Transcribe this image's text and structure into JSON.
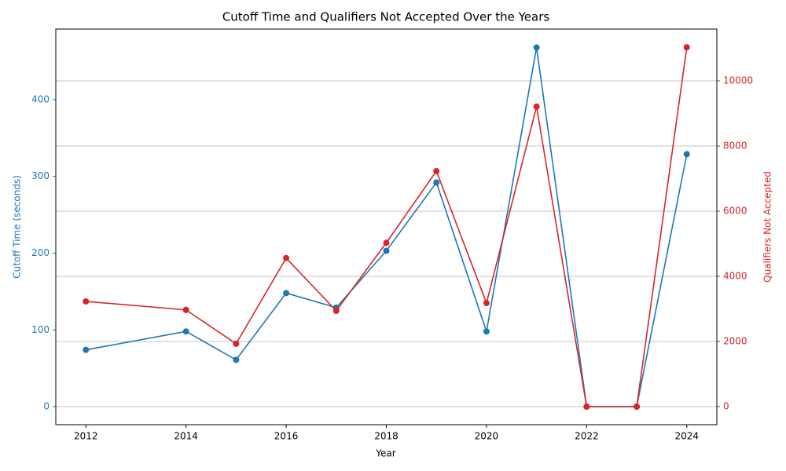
{
  "chart_data": {
    "type": "line",
    "title": "Cutoff Time and Qualifiers Not Accepted Over the Years",
    "x_label": "Year",
    "y_label": "Cutoff Time (seconds)",
    "y2_label": "Qualifiers Not Accepted",
    "x": [
      2012,
      2014,
      2015,
      2016,
      2017,
      2018,
      2019,
      2020,
      2021,
      2022,
      2023,
      2024
    ],
    "series": [
      {
        "name": "Cutoff Time (seconds)",
        "color": "#1f77b4",
        "values": [
          74,
          98,
          61,
          148,
          129,
          203,
          292,
          98,
          468,
          0,
          0,
          329
        ]
      },
      {
        "name": "Qualifiers Not Accepted",
        "color": "#d62728",
        "axis": "y2",
        "values": [
          3230,
          2970,
          1930,
          4560,
          2940,
          5030,
          7230,
          3180,
          9210,
          0,
          0,
          11030
        ]
      }
    ],
    "xlim": [
      2011.4,
      2024.6
    ],
    "xticks": [
      2012,
      2014,
      2016,
      2018,
      2020,
      2022,
      2024
    ],
    "ylim": [
      -23.5,
      492
    ],
    "yticks": [
      0,
      100,
      200,
      300,
      400
    ],
    "y2lim": [
      -554,
      11590
    ],
    "y2ticks": [
      0,
      2000,
      4000,
      6000,
      8000,
      10000
    ],
    "grid": "y2"
  }
}
